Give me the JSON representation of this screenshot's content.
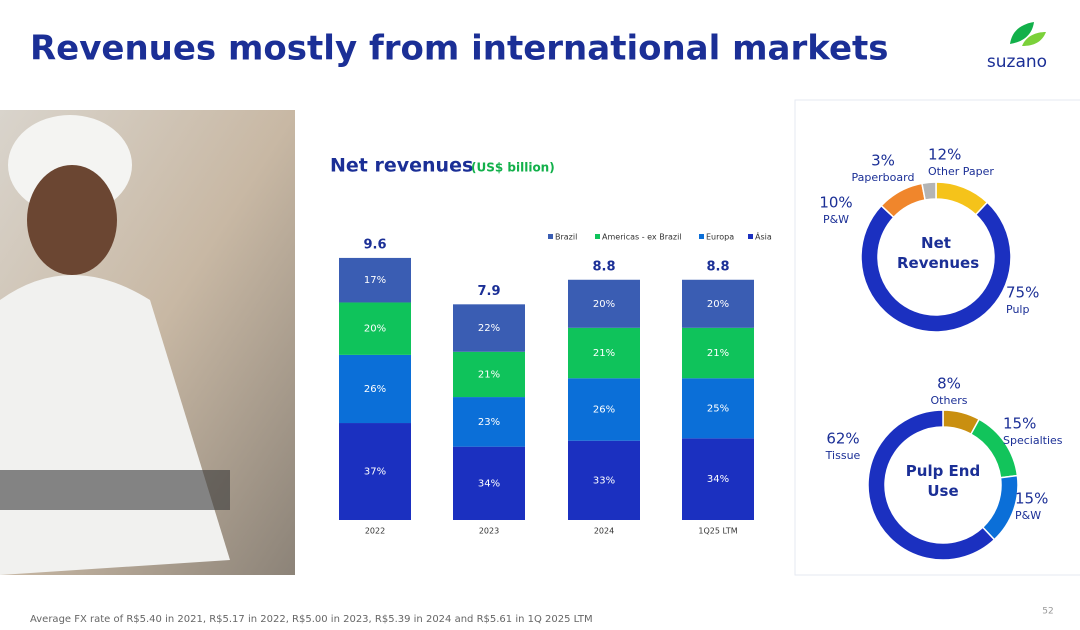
{
  "slide": {
    "title": "Revenues mostly from international markets",
    "logo": "suzano",
    "footnote": "Average FX rate of R$5.40 in 2021, R$5.17 in 2022, R$5.00 in 2023, R$5.39 in 2024 and R$5.61 in 1Q 2025 LTM",
    "page_number": "52"
  },
  "chart_data": [
    {
      "type": "bar",
      "title": "Net revenues",
      "subtitle": "(US$ billion)",
      "categories": [
        "2022",
        "2023",
        "2024",
        "1Q25 LTM"
      ],
      "totals": [
        9.6,
        7.9,
        8.8,
        8.8
      ],
      "series": [
        {
          "name": "Brazil",
          "color": "#3a5db3",
          "values": [
            17,
            22,
            20,
            20
          ],
          "value_labels": [
            "17%",
            "22%",
            "20%",
            "20%"
          ]
        },
        {
          "name": "Americas - ex Brazil",
          "color": "#0fc35b",
          "values": [
            20,
            21,
            21,
            21
          ],
          "value_labels": [
            "20%",
            "21%",
            "21%",
            "21%"
          ]
        },
        {
          "name": "Europa",
          "color": "#0b6fd8",
          "values": [
            26,
            23,
            26,
            25
          ],
          "value_labels": [
            "26%",
            "23%",
            "26%",
            "25%"
          ]
        },
        {
          "name": "Ásia",
          "color": "#1b30c0",
          "values": [
            37,
            34,
            33,
            34
          ],
          "value_labels": [
            "37%",
            "34%",
            "33%",
            "34%"
          ]
        }
      ]
    },
    {
      "type": "pie",
      "title": "Net Revenues",
      "categories": [
        "Other Paper",
        "Pulp",
        "P&W",
        "Paperboard"
      ],
      "values": [
        12,
        75,
        10,
        3
      ],
      "value_labels": [
        "12%",
        "75%",
        "10%",
        "3%"
      ],
      "colors": [
        "#f5c31a",
        "#1b30c0",
        "#f0862c",
        "#b4b4b4"
      ]
    },
    {
      "type": "pie",
      "title": "Pulp End Use",
      "categories": [
        "Others",
        "Specialties",
        "P&W",
        "Tissue"
      ],
      "values": [
        8,
        15,
        15,
        62
      ],
      "value_labels": [
        "8%",
        "15%",
        "15%",
        "62%"
      ],
      "colors": [
        "#c98f10",
        "#12c45b",
        "#0b6fd8",
        "#1b30c0"
      ]
    }
  ]
}
